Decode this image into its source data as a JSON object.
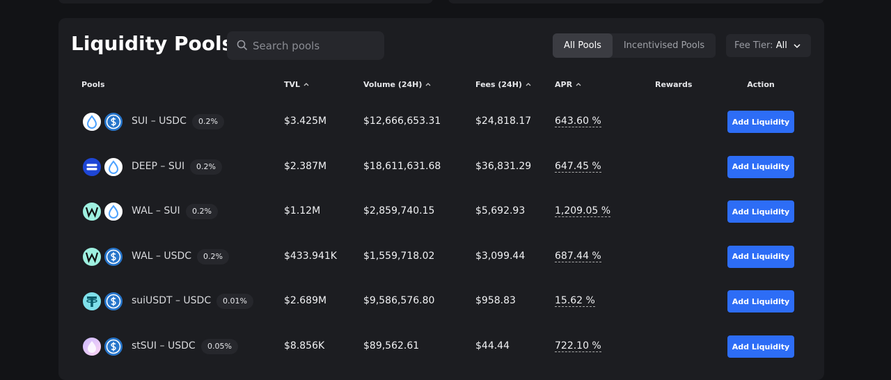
{
  "header": {
    "title": "Liquidity Pools",
    "search_placeholder": "Search pools",
    "tabs": [
      "All Pools",
      "Incentivised Pools"
    ],
    "fee_tier_label": "Fee Tier:",
    "fee_tier_value": "All"
  },
  "table": {
    "columns": [
      "Pools",
      "TVL",
      "Volume (24H)",
      "Fees (24H)",
      "APR",
      "Rewards",
      "Action"
    ],
    "rows": [
      {
        "pair": "SUI – USDC",
        "fee": "0.2%",
        "tvl": "$3.425M",
        "volume": "$12,666,653.31",
        "fees": "$24,818.17",
        "apr": "643.60 %",
        "action": "Add Liquidity"
      },
      {
        "pair": "DEEP – SUI",
        "fee": "0.2%",
        "tvl": "$2.387M",
        "volume": "$18,611,631.68",
        "fees": "$36,831.29",
        "apr": "647.45 %",
        "action": "Add Liquidity"
      },
      {
        "pair": "WAL – SUI",
        "fee": "0.2%",
        "tvl": "$1.12M",
        "volume": "$2,859,740.15",
        "fees": "$5,692.93",
        "apr": "1,209.05 %",
        "action": "Add Liquidity"
      },
      {
        "pair": "WAL – USDC",
        "fee": "0.2%",
        "tvl": "$433.941K",
        "volume": "$1,559,718.02",
        "fees": "$3,099.44",
        "apr": "687.44 %",
        "action": "Add Liquidity"
      },
      {
        "pair": "suiUSDT – USDC",
        "fee": "0.01%",
        "tvl": "$2.689M",
        "volume": "$9,586,576.80",
        "fees": "$958.83",
        "apr": "15.62 %",
        "action": "Add Liquidity"
      },
      {
        "pair": "stSUI – USDC",
        "fee": "0.05%",
        "tvl": "$8.856K",
        "volume": "$89,562.61",
        "fees": "$44.44",
        "apr": "722.10 %",
        "action": "Add Liquidity"
      }
    ]
  }
}
